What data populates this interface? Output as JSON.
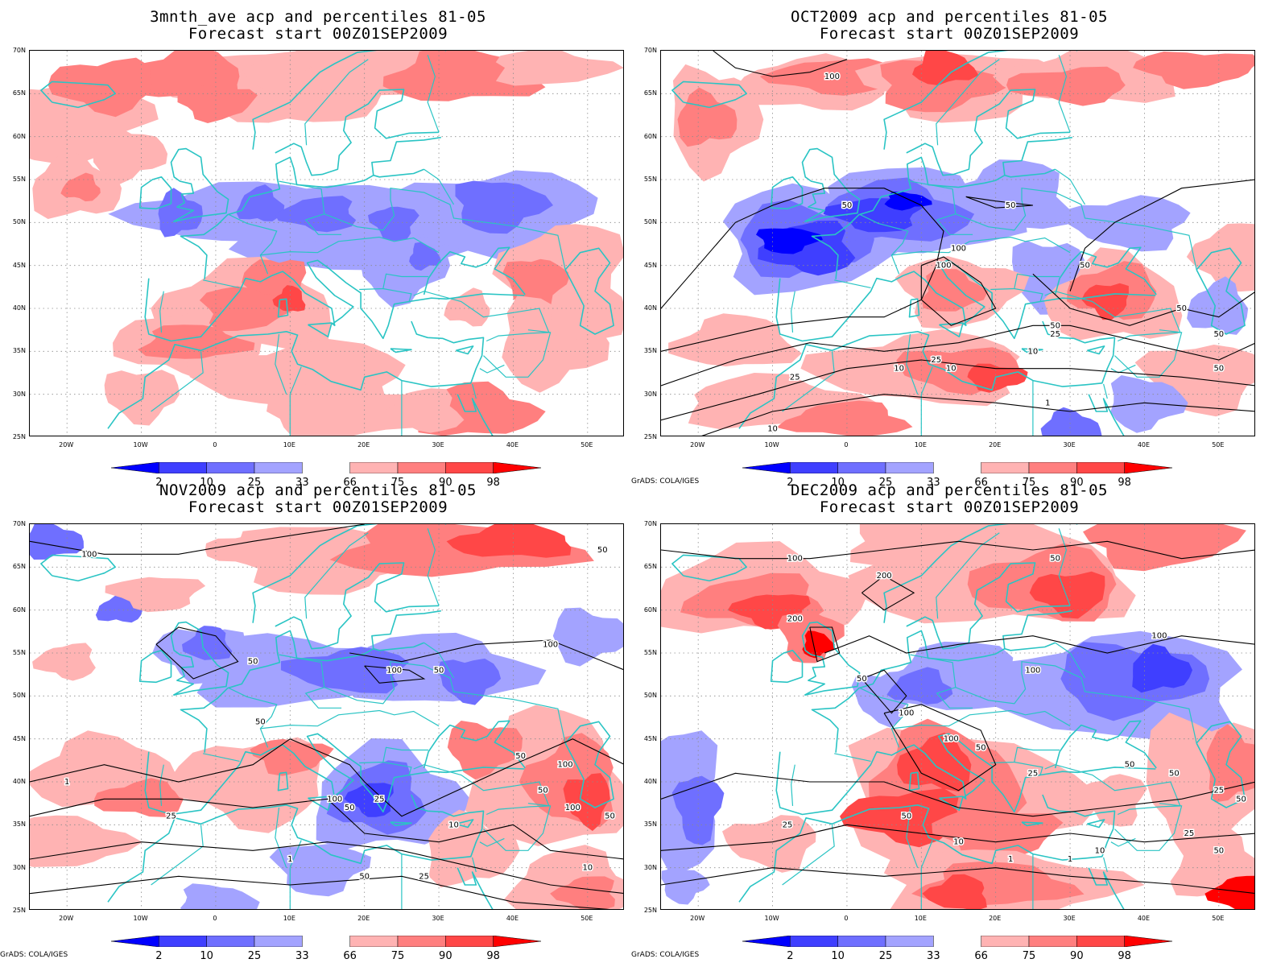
{
  "panels": [
    {
      "title_line1": "3mnth_ave acp and percentiles 81-05",
      "title_line2": "Forecast start 00Z01SEP2009",
      "credit": "",
      "pattern": "avg"
    },
    {
      "title_line1": "OCT2009 acp and percentiles 81-05",
      "title_line2": "Forecast start 00Z01SEP2009",
      "credit": "GrADS: COLA/IGES",
      "pattern": "oct"
    },
    {
      "title_line1": "NOV2009 acp and percentiles 81-05",
      "title_line2": "Forecast start 00Z01SEP2009",
      "credit": "GrADS: COLA/IGES",
      "pattern": "nov"
    },
    {
      "title_line1": "DEC2009 acp and percentiles 81-05",
      "title_line2": "Forecast start 00Z01SEP2009",
      "credit": "GrADS: COLA/IGES",
      "pattern": "dec"
    }
  ],
  "axes": {
    "lat_labels": [
      "70N",
      "65N",
      "60N",
      "55N",
      "50N",
      "45N",
      "40N",
      "35N",
      "30N",
      "25N"
    ],
    "lon_labels": [
      "20W",
      "10W",
      "0",
      "10E",
      "20E",
      "30E",
      "40E",
      "50E"
    ],
    "lat_range": [
      25,
      70
    ],
    "lon_range": [
      -25,
      55
    ]
  },
  "colorbar": {
    "labels": [
      "2",
      "10",
      "25",
      "33",
      "66",
      "75",
      "90",
      "98"
    ],
    "colors": [
      "#0000ff",
      "#3f3fff",
      "#6f6fff",
      "#a3a3ff",
      "#ffffff",
      "#ffb3b3",
      "#ff7f7f",
      "#ff4747",
      "#ff0000"
    ]
  },
  "colors": {
    "coastline": "#2ac4c4",
    "contour": "#000000",
    "blue_light": "#a3a3ff",
    "blue_mid": "#6f6fff",
    "blue_dark": "#3f3fff",
    "blue_darkest": "#0000ff",
    "red_light": "#ffb3b3",
    "red_mid": "#ff7f7f",
    "red_dark": "#ff4747",
    "red_darkest": "#ff0000"
  },
  "contour_labels": {
    "oct": [
      "100",
      "100",
      "50",
      "50",
      "100",
      "50",
      "50",
      "100",
      "50",
      "25",
      "10",
      "50",
      "25",
      "10",
      "25",
      "10",
      "50",
      "1",
      "10"
    ],
    "nov": [
      "100",
      "50",
      "100",
      "50",
      "50",
      "100",
      "50",
      "100",
      "50",
      "100",
      "50",
      "100",
      "25",
      "50",
      "25",
      "10",
      "1",
      "1",
      "50",
      "25",
      "10",
      "50"
    ],
    "dec": [
      "100",
      "200",
      "200",
      "50",
      "100",
      "100",
      "50",
      "100",
      "100",
      "50",
      "25",
      "50",
      "50",
      "25",
      "50",
      "25",
      "10",
      "1",
      "1",
      "10",
      "50",
      "25",
      "50"
    ]
  }
}
